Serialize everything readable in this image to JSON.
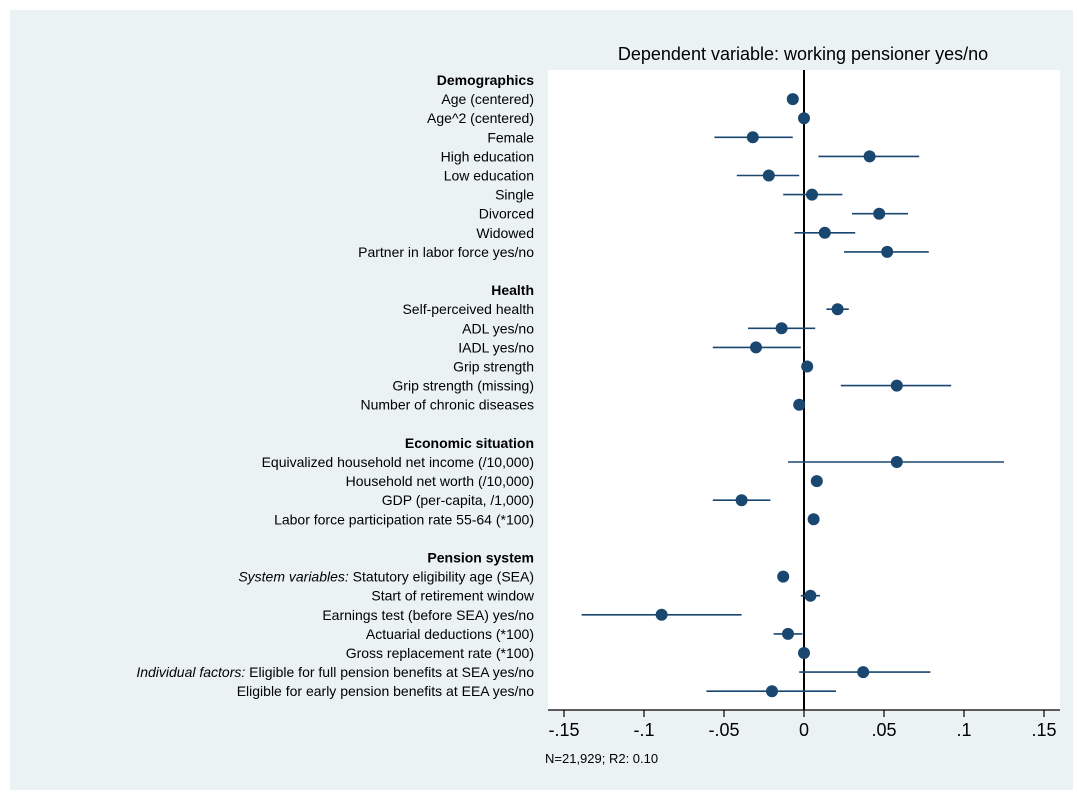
{
  "chart_data": {
    "type": "scatter",
    "title": "Dependent variable: working pensioner yes/no",
    "note": "N=21,929; R2: 0.10",
    "xlim": [
      -0.16,
      0.16
    ],
    "xticks": [
      {
        "value": -0.15,
        "label": "-.15"
      },
      {
        "value": -0.1,
        "label": "-.1"
      },
      {
        "value": -0.05,
        "label": "-.05"
      },
      {
        "value": 0,
        "label": "0"
      },
      {
        "value": 0.05,
        "label": ".05"
      },
      {
        "value": 0.1,
        "label": ".1"
      },
      {
        "value": 0.15,
        "label": ".15"
      }
    ],
    "reference_line": 0,
    "grid": true,
    "colors": {
      "marker": "#1a476f",
      "ci_line": "#1a476f",
      "gridline": "#ffffff",
      "plot_background": "#ffffff",
      "outer_background": "#eaf2f3",
      "zero_line": "#000000"
    },
    "rows": [
      {
        "kind": "header",
        "label": "Demographics"
      },
      {
        "kind": "item",
        "label": "Age (centered)",
        "coef": -0.007,
        "lo": -0.007,
        "hi": -0.007
      },
      {
        "kind": "item",
        "label": "Age^2 (centered)",
        "coef": 0.0,
        "lo": 0.0,
        "hi": 0.0
      },
      {
        "kind": "item",
        "label": "Female",
        "coef": -0.032,
        "lo": -0.056,
        "hi": -0.007
      },
      {
        "kind": "item",
        "label": "High education",
        "coef": 0.041,
        "lo": 0.009,
        "hi": 0.072
      },
      {
        "kind": "item",
        "label": "Low education",
        "coef": -0.022,
        "lo": -0.042,
        "hi": -0.003
      },
      {
        "kind": "item",
        "label": "Single",
        "coef": 0.005,
        "lo": -0.013,
        "hi": 0.024
      },
      {
        "kind": "item",
        "label": "Divorced",
        "coef": 0.047,
        "lo": 0.03,
        "hi": 0.065
      },
      {
        "kind": "item",
        "label": "Widowed",
        "coef": 0.013,
        "lo": -0.006,
        "hi": 0.032
      },
      {
        "kind": "item",
        "label": "Partner in labor force yes/no",
        "coef": 0.052,
        "lo": 0.025,
        "hi": 0.078
      },
      {
        "kind": "blank"
      },
      {
        "kind": "header",
        "label": "Health"
      },
      {
        "kind": "item",
        "label": "Self-perceived health",
        "coef": 0.021,
        "lo": 0.014,
        "hi": 0.028
      },
      {
        "kind": "item",
        "label": "ADL yes/no",
        "coef": -0.014,
        "lo": -0.035,
        "hi": 0.007
      },
      {
        "kind": "item",
        "label": "IADL yes/no",
        "coef": -0.03,
        "lo": -0.057,
        "hi": -0.002
      },
      {
        "kind": "item",
        "label": "Grip strength",
        "coef": 0.002,
        "lo": 0.002,
        "hi": 0.002
      },
      {
        "kind": "item",
        "label": "Grip strength (missing)",
        "coef": 0.058,
        "lo": 0.023,
        "hi": 0.092
      },
      {
        "kind": "item",
        "label": "Number of chronic diseases",
        "coef": -0.003,
        "lo": -0.003,
        "hi": -0.003
      },
      {
        "kind": "blank"
      },
      {
        "kind": "header",
        "label": "Economic situation"
      },
      {
        "kind": "item",
        "label": "Equivalized household net income (/10,000)",
        "coef": 0.058,
        "lo": -0.01,
        "hi": 0.125
      },
      {
        "kind": "item",
        "label": "Household net worth (/10,000)",
        "coef": 0.008,
        "lo": 0.008,
        "hi": 0.008
      },
      {
        "kind": "item",
        "label": "GDP (per-capita, /1,000)",
        "coef": -0.039,
        "lo": -0.057,
        "hi": -0.021
      },
      {
        "kind": "item",
        "label": "Labor force participation rate 55-64 (*100)",
        "coef": 0.006,
        "lo": 0.006,
        "hi": 0.006
      },
      {
        "kind": "blank"
      },
      {
        "kind": "header",
        "label": "Pension system"
      },
      {
        "kind": "item",
        "italic_prefix": "System variables:",
        "label": " Statutory eligibility age (SEA)",
        "coef": -0.013,
        "lo": -0.013,
        "hi": -0.013
      },
      {
        "kind": "item",
        "label": "Start of retirement window",
        "coef": 0.004,
        "lo": -0.002,
        "hi": 0.01
      },
      {
        "kind": "item",
        "label": "Earnings test (before SEA) yes/no",
        "coef": -0.089,
        "lo": -0.139,
        "hi": -0.039
      },
      {
        "kind": "item",
        "label": "Actuarial deductions (*100)",
        "coef": -0.01,
        "lo": -0.019,
        "hi": -0.001
      },
      {
        "kind": "item",
        "label": "Gross replacement rate (*100)",
        "coef": 0.0,
        "lo": 0.0,
        "hi": 0.0
      },
      {
        "kind": "item",
        "italic_prefix": "Individual factors:",
        "label": " Eligible for full pension benefits at SEA yes/no",
        "coef": 0.037,
        "lo": -0.003,
        "hi": 0.079
      },
      {
        "kind": "item",
        "label": "Eligible for early pension benefits at EEA yes/no",
        "coef": -0.02,
        "lo": -0.061,
        "hi": 0.02
      }
    ]
  }
}
